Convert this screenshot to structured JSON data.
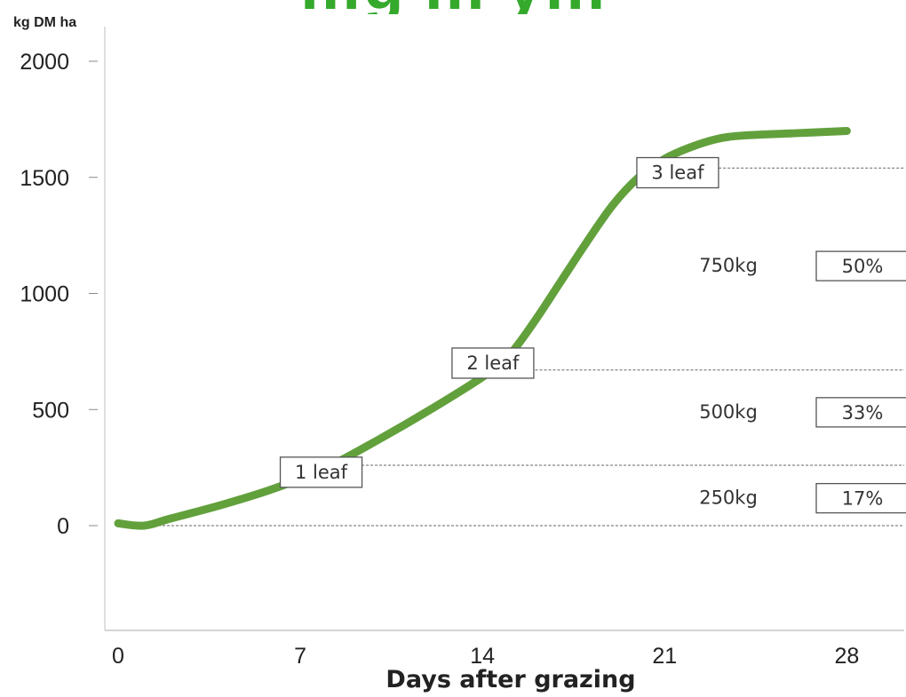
{
  "chart_data": {
    "type": "line",
    "title": "",
    "title_partial": "…g … y…",
    "ylabel": "kg DM ha",
    "xlabel": "Days after grazing",
    "x_ticks": [
      0,
      7,
      14,
      21,
      28
    ],
    "y_ticks": [
      0,
      500,
      1000,
      1500,
      2000
    ],
    "xlim": [
      -0.5,
      31
    ],
    "ylim": [
      -450,
      2050
    ],
    "grid": false,
    "series": [
      {
        "color": "#62a03c",
        "x": [
          0,
          1,
          2,
          4,
          6,
          8,
          10,
          12,
          14,
          15,
          16,
          17,
          18,
          19,
          20,
          21,
          22,
          23,
          24,
          26,
          28
        ],
        "y": [
          10,
          0,
          30,
          90,
          160,
          250,
          370,
          500,
          640,
          730,
          880,
          1050,
          1220,
          1380,
          1500,
          1580,
          1630,
          1665,
          1680,
          1690,
          1700
        ]
      }
    ],
    "reference_lines": [
      {
        "y": 0,
        "label": ""
      },
      {
        "y": 260,
        "label": ""
      },
      {
        "y": 670,
        "label": ""
      },
      {
        "y": 1540,
        "label": ""
      }
    ],
    "annotations": [
      {
        "text": "1 leaf",
        "x": 7.8,
        "y": 230
      },
      {
        "text": "2 leaf",
        "x": 14.4,
        "y": 700
      },
      {
        "text": "3 leaf",
        "x": 21.5,
        "y": 1520
      }
    ],
    "band_labels": [
      {
        "amount": "250kg",
        "percent": "17%",
        "y": 120
      },
      {
        "amount": "500kg",
        "percent": "33%",
        "y": 490
      },
      {
        "amount": "750kg",
        "percent": "50%",
        "y": 1120
      }
    ]
  }
}
